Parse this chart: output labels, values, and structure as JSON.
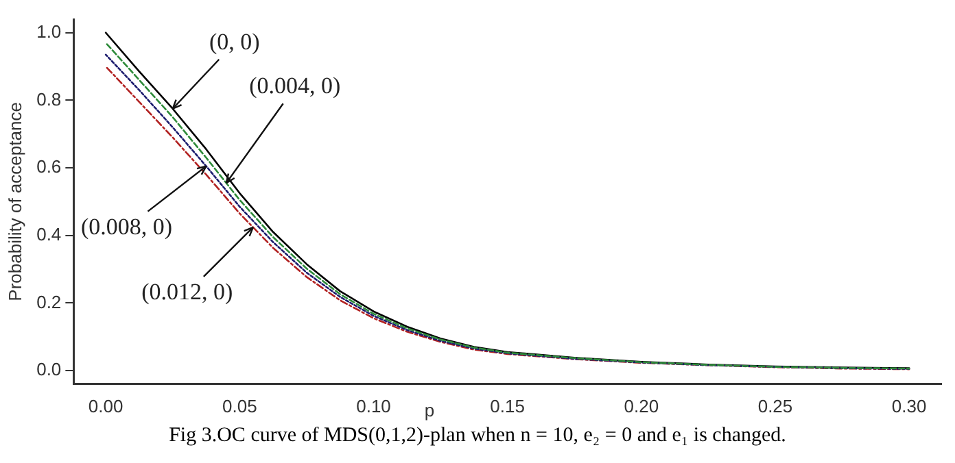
{
  "chart_data": {
    "type": "line",
    "xlabel": "p",
    "ylabel": "Probability of acceptance",
    "x": [
      0,
      0.0125,
      0.025,
      0.0375,
      0.05,
      0.0625,
      0.075,
      0.0875,
      0.1,
      0.1125,
      0.125,
      0.1375,
      0.15,
      0.175,
      0.2,
      0.225,
      0.25,
      0.275,
      0.3
    ],
    "series": [
      {
        "color": "#000000",
        "line_style": "solid",
        "values": [
          1.0,
          0.885,
          0.775,
          0.655,
          0.525,
          0.41,
          0.315,
          0.235,
          0.175,
          0.13,
          0.095,
          0.07,
          0.055,
          0.038,
          0.026,
          0.018,
          0.012,
          0.009,
          0.007
        ]
      },
      {
        "color": "#2e8b3a",
        "line_style": "dashed",
        "values": [
          0.97,
          0.86,
          0.75,
          0.63,
          0.505,
          0.395,
          0.302,
          0.226,
          0.168,
          0.125,
          0.092,
          0.068,
          0.053,
          0.037,
          0.025,
          0.017,
          0.011,
          0.008,
          0.006
        ]
      },
      {
        "color": "#1c1c6e",
        "line_style": "dotted",
        "values": [
          0.935,
          0.83,
          0.72,
          0.605,
          0.485,
          0.38,
          0.29,
          0.218,
          0.162,
          0.12,
          0.088,
          0.065,
          0.051,
          0.035,
          0.024,
          0.016,
          0.011,
          0.007,
          0.005
        ]
      },
      {
        "color": "#b22222",
        "line_style": "dashdot",
        "values": [
          0.9,
          0.795,
          0.69,
          0.58,
          0.465,
          0.363,
          0.277,
          0.208,
          0.155,
          0.115,
          0.085,
          0.062,
          0.049,
          0.034,
          0.023,
          0.016,
          0.01,
          0.006,
          0.004
        ]
      }
    ],
    "xlim": [
      -0.012,
      0.312
    ],
    "xticks": [
      {
        "value": 0,
        "label": "0.00"
      },
      {
        "value": 0.05,
        "label": "0.05"
      },
      {
        "value": 0.1,
        "label": "0.10"
      },
      {
        "value": 0.15,
        "label": "0.15"
      },
      {
        "value": 0.2,
        "label": "0.20"
      },
      {
        "value": 0.25,
        "label": "0.25"
      },
      {
        "value": 0.3,
        "label": "0.30"
      }
    ],
    "ylim": [
      -0.04,
      1.04
    ],
    "yticks": [
      {
        "value": 0,
        "label": "0.0"
      },
      {
        "value": 0.2,
        "label": "0.2"
      },
      {
        "value": 0.4,
        "label": "0.4"
      },
      {
        "value": 0.6,
        "label": "0.6"
      },
      {
        "value": 0.8,
        "label": "0.8"
      },
      {
        "value": 1,
        "label": "1.0"
      }
    ],
    "grid": false,
    "legend": false,
    "marker": "none",
    "annotations": [
      {
        "text": "(0, 0)",
        "x": 0.025,
        "y": 0.775
      },
      {
        "text": "(0.004, 0)",
        "x": 0.045,
        "y": 0.555
      },
      {
        "text": "(0.008, 0)",
        "x": 0.0375,
        "y": 0.605
      },
      {
        "text": "(0.012, 0)",
        "x": 0.055,
        "y": 0.424
      },
      "Fig 3.OC curve of MDS(0,1,2)-plan when  n = 10, e₂ = 0  and  e₁  is changed."
    ]
  }
}
